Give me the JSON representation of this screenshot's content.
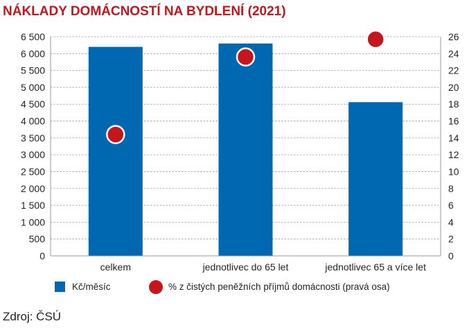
{
  "chart_data": {
    "type": "bar",
    "title": "NÁKLADY DOMÁCNOSTÍ NA BYDLENÍ (2021)",
    "categories": [
      "celkem",
      "jednotlivec do 65 let",
      "jednotlivec 65 a více let"
    ],
    "series": [
      {
        "name": "Kč/měsíc",
        "type": "bar",
        "axis": "left",
        "values": [
          6200,
          6300,
          4560
        ],
        "color": "#0067b1"
      },
      {
        "name": "% z čistých peněžních příjmů domácnosti (pravá osa)",
        "type": "scatter",
        "axis": "right",
        "values": [
          14.4,
          23.6,
          25.7
        ],
        "color": "#c4161c"
      }
    ],
    "y_left": {
      "min": 0,
      "max": 6500,
      "step": 500,
      "ticks": [
        "0",
        "500",
        "1 000",
        "1 500",
        "2 000",
        "2 500",
        "3 000",
        "3 500",
        "4 000",
        "4 500",
        "5 000",
        "5 500",
        "6 000",
        "6 500"
      ]
    },
    "y_right": {
      "min": 0,
      "max": 26,
      "step": 2,
      "ticks": [
        "0",
        "2",
        "4",
        "6",
        "8",
        "10",
        "12",
        "14",
        "16",
        "18",
        "20",
        "22",
        "24",
        "26"
      ]
    },
    "grid": "horizontal dashed",
    "legend_position": "bottom"
  },
  "source": "Zdroj: ČSÚ"
}
